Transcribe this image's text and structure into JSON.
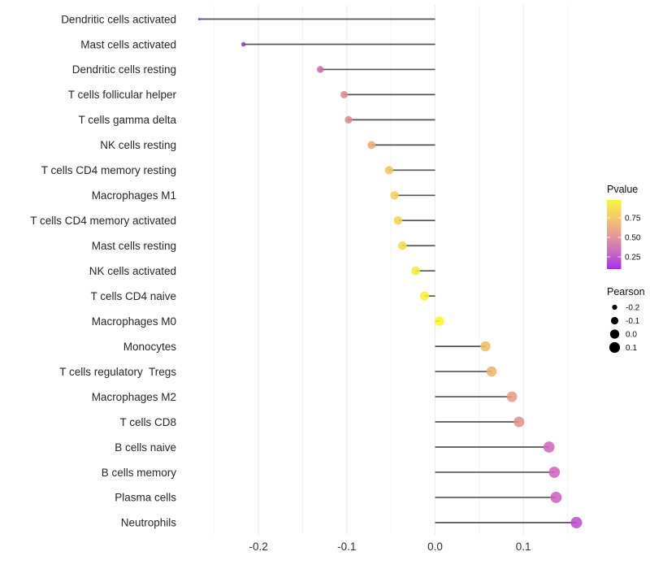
{
  "chart_data": {
    "type": "lollipop",
    "title": "",
    "xlabel": "",
    "ylabel": "",
    "orientation": "horizontal",
    "grid": "major and minor vertical gridlines, light gray, minimal theme, no axis lines",
    "xlim": [
      -0.288,
      0.181
    ],
    "x_ticks": [
      -0.2,
      -0.1,
      0.0,
      0.1
    ],
    "x_tick_labels": [
      "-0.2",
      "-0.1",
      "0.0",
      "0.1"
    ],
    "x_minor_ticks": [
      -0.25,
      -0.15,
      -0.05,
      0.05,
      0.15
    ],
    "categories": [
      "Dendritic cells activated",
      "Mast cells activated",
      "Dendritic cells resting",
      "T cells follicular helper",
      "T cells gamma delta",
      "NK cells resting",
      "T cells CD4 memory resting",
      "Macrophages M1",
      "T cells CD4 memory activated",
      "Mast cells resting",
      "NK cells activated",
      "T cells CD4 naive",
      "Macrophages M0",
      "Monocytes",
      "T cells regulatory  Tregs",
      "Macrophages M2",
      "T cells CD8",
      "B cells naive",
      "B cells memory",
      "Plasma cells",
      "Neutrophils"
    ],
    "series": [
      {
        "name": "Pearson",
        "values": [
          -0.267,
          -0.217,
          -0.13,
          -0.103,
          -0.098,
          -0.072,
          -0.052,
          -0.046,
          -0.042,
          -0.037,
          -0.022,
          -0.012,
          0.005,
          0.057,
          0.064,
          0.087,
          0.095,
          0.129,
          0.135,
          0.137,
          0.16
        ]
      },
      {
        "name": "Pvalue (estimated from color scale)",
        "values": [
          0.1,
          0.13,
          0.35,
          0.5,
          0.5,
          0.65,
          0.72,
          0.75,
          0.78,
          0.8,
          0.85,
          0.88,
          0.95,
          0.7,
          0.67,
          0.57,
          0.53,
          0.32,
          0.3,
          0.29,
          0.18
        ]
      }
    ],
    "point_colors": [
      "#9233dd",
      "#9c35d6",
      "#ce69b0",
      "#dc8c94",
      "#db8a8d",
      "#ebad72",
      "#f0c75e",
      "#f2d055",
      "#f3d74d",
      "#f4dd46",
      "#f7e93a",
      "#f9ef31",
      "#fdf520",
      "#edbe62",
      "#ecb369",
      "#e89a85",
      "#e38f8f",
      "#d465be",
      "#d162c0",
      "#d05fc1",
      "#bf4ed2"
    ],
    "stem_color": "#545454",
    "size_encoding": "point size maps to Pearson value",
    "color_encoding": "point color maps to Pvalue (purple = low, yellow = high)",
    "legend": {
      "position": "right",
      "pvalue": {
        "title": "Pvalue",
        "tick_labels": [
          "0.75",
          "0.50",
          "0.25"
        ],
        "tick_values": [
          0.75,
          0.5,
          0.25
        ],
        "gradient_top_to_bottom": [
          "#f9f43c",
          "#f3cb65",
          "#e69b95",
          "#cb6dc0",
          "#a72ded"
        ]
      },
      "pearson": {
        "title": "Pearson",
        "size_labels": [
          "-0.2",
          "-0.1",
          "0.0",
          "0.1"
        ],
        "size_values": [
          -0.2,
          -0.1,
          0.0,
          0.1
        ],
        "dot_color": "#000000"
      }
    }
  },
  "layout_colors": {
    "background": "#ffffff",
    "grid_major": "#ececec",
    "grid_minor": "#f4f4f4"
  }
}
